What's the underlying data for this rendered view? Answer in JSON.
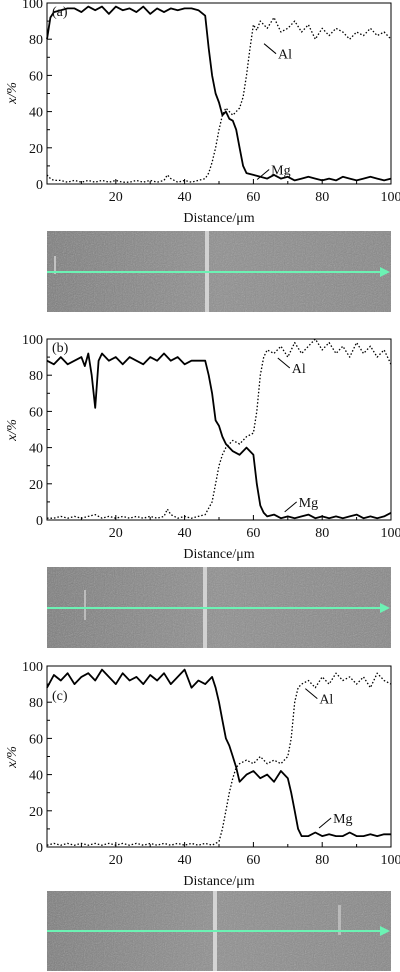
{
  "colors": {
    "mg_line": "#000000",
    "al_line": "#000000",
    "scan_arrow": "#6cf2b4",
    "sem_base": "#8a8a8a"
  },
  "chart_data": [
    {
      "type": "line",
      "panel_label": "(a)",
      "xlabel": "Distance/μm",
      "ylabel": "x/%",
      "xlim": [
        0,
        100
      ],
      "ylim": [
        0,
        100
      ],
      "xticks": [
        "20",
        "40",
        "60",
        "80",
        "100"
      ],
      "yticks": [
        "0",
        "20",
        "40",
        "60",
        "80",
        "100"
      ],
      "series": [
        {
          "name": "Mg",
          "style": "solid",
          "label_at": [
            64,
            8
          ],
          "x": [
            0,
            1,
            2,
            4,
            6,
            8,
            10,
            12,
            14,
            16,
            18,
            20,
            22,
            24,
            26,
            28,
            30,
            32,
            34,
            36,
            38,
            40,
            42,
            44,
            46,
            47,
            48,
            49,
            50,
            51,
            52,
            53,
            54,
            55,
            56,
            57,
            58,
            60,
            62,
            64,
            66,
            68,
            70,
            72,
            74,
            76,
            78,
            80,
            82,
            84,
            86,
            88,
            90,
            92,
            94,
            96,
            98,
            100
          ],
          "y": [
            80,
            92,
            95,
            96,
            97,
            97,
            95,
            98,
            96,
            98,
            94,
            98,
            96,
            97,
            95,
            98,
            94,
            97,
            95,
            97,
            96,
            97,
            97,
            96,
            93,
            75,
            60,
            50,
            45,
            38,
            40,
            36,
            35,
            30,
            20,
            10,
            6,
            5,
            4,
            3,
            5,
            3,
            4,
            2,
            3,
            4,
            3,
            2,
            3,
            2,
            4,
            3,
            2,
            3,
            4,
            3,
            2,
            3
          ]
        },
        {
          "name": "Al",
          "style": "dotted",
          "label_at": [
            66,
            72
          ],
          "x": [
            0,
            1,
            2,
            4,
            6,
            8,
            10,
            12,
            14,
            16,
            18,
            20,
            22,
            24,
            26,
            28,
            30,
            32,
            34,
            35,
            36,
            37,
            38,
            40,
            42,
            44,
            46,
            47,
            48,
            49,
            50,
            51,
            52,
            53,
            54,
            55,
            56,
            57,
            58,
            59,
            60,
            61,
            62,
            64,
            66,
            68,
            70,
            72,
            74,
            76,
            78,
            80,
            82,
            84,
            86,
            88,
            90,
            92,
            94,
            96,
            98,
            100
          ],
          "y": [
            5,
            3,
            2,
            2,
            1,
            2,
            1,
            2,
            1,
            2,
            1,
            2,
            1,
            1,
            2,
            1,
            2,
            1,
            2,
            5,
            3,
            2,
            1,
            2,
            1,
            2,
            3,
            6,
            12,
            20,
            30,
            38,
            42,
            40,
            38,
            40,
            42,
            48,
            60,
            75,
            88,
            85,
            90,
            86,
            92,
            84,
            86,
            90,
            84,
            88,
            80,
            86,
            82,
            86,
            84,
            80,
            84,
            82,
            86,
            82,
            84,
            80
          ]
        }
      ]
    },
    {
      "type": "line",
      "panel_label": "(b)",
      "xlabel": "Distance/μm",
      "ylabel": "x/%",
      "xlim": [
        0,
        100
      ],
      "ylim": [
        0,
        100
      ],
      "xticks": [
        "20",
        "40",
        "60",
        "80",
        "100"
      ],
      "yticks": [
        "0",
        "20",
        "40",
        "60",
        "80",
        "100"
      ],
      "series": [
        {
          "name": "Mg",
          "style": "solid",
          "label_at": [
            72,
            10
          ],
          "x": [
            0,
            2,
            4,
            6,
            8,
            10,
            11,
            12,
            13,
            14,
            15,
            16,
            18,
            20,
            22,
            24,
            26,
            28,
            30,
            32,
            34,
            36,
            38,
            40,
            42,
            44,
            46,
            47,
            48,
            49,
            50,
            51,
            52,
            54,
            56,
            58,
            59,
            60,
            61,
            62,
            63,
            64,
            66,
            68,
            70,
            72,
            74,
            76,
            78,
            80,
            82,
            84,
            86,
            88,
            90,
            92,
            94,
            96,
            98,
            100
          ],
          "y": [
            88,
            86,
            90,
            86,
            88,
            90,
            85,
            92,
            80,
            62,
            88,
            92,
            88,
            90,
            86,
            90,
            88,
            86,
            90,
            88,
            92,
            88,
            90,
            86,
            88,
            88,
            88,
            80,
            70,
            55,
            52,
            46,
            42,
            38,
            36,
            40,
            38,
            36,
            20,
            8,
            4,
            2,
            3,
            1,
            2,
            1,
            2,
            3,
            1,
            2,
            1,
            2,
            1,
            2,
            3,
            1,
            2,
            1,
            2,
            4
          ]
        },
        {
          "name": "Al",
          "style": "dotted",
          "label_at": [
            70,
            84
          ],
          "x": [
            0,
            2,
            4,
            6,
            8,
            10,
            12,
            14,
            16,
            18,
            20,
            22,
            24,
            26,
            28,
            30,
            32,
            34,
            35,
            36,
            37,
            38,
            40,
            42,
            44,
            46,
            48,
            49,
            50,
            51,
            52,
            54,
            56,
            58,
            60,
            61,
            62,
            63,
            64,
            66,
            68,
            70,
            72,
            74,
            76,
            78,
            80,
            82,
            84,
            86,
            88,
            90,
            92,
            94,
            96,
            98,
            100
          ],
          "y": [
            1,
            1,
            2,
            1,
            2,
            1,
            2,
            3,
            1,
            2,
            1,
            2,
            1,
            2,
            1,
            2,
            1,
            2,
            6,
            3,
            2,
            1,
            2,
            1,
            2,
            3,
            10,
            20,
            30,
            36,
            40,
            44,
            42,
            46,
            48,
            60,
            80,
            90,
            94,
            92,
            96,
            90,
            98,
            92,
            96,
            100,
            94,
            98,
            92,
            96,
            90,
            98,
            92,
            96,
            90,
            94,
            86
          ]
        }
      ]
    },
    {
      "type": "line",
      "panel_label": "(c)",
      "xlabel": "Distance/μm",
      "ylabel": "x/%",
      "xlim": [
        0,
        100
      ],
      "ylim": [
        0,
        100
      ],
      "xticks": [
        "20",
        "40",
        "60",
        "80",
        "100"
      ],
      "yticks": [
        "0",
        "20",
        "40",
        "60",
        "80",
        "100"
      ],
      "series": [
        {
          "name": "Mg",
          "style": "solid",
          "label_at": [
            82,
            16
          ],
          "x": [
            0,
            2,
            4,
            6,
            8,
            10,
            12,
            14,
            16,
            18,
            20,
            22,
            24,
            26,
            28,
            30,
            32,
            34,
            36,
            38,
            40,
            42,
            44,
            46,
            48,
            49,
            50,
            51,
            52,
            53,
            54,
            55,
            56,
            58,
            60,
            62,
            64,
            66,
            68,
            70,
            71,
            72,
            73,
            74,
            76,
            78,
            80,
            82,
            84,
            86,
            88,
            90,
            92,
            94,
            96,
            98,
            100
          ],
          "y": [
            88,
            95,
            92,
            96,
            90,
            94,
            96,
            92,
            98,
            94,
            90,
            96,
            92,
            94,
            90,
            95,
            92,
            96,
            90,
            94,
            98,
            88,
            92,
            90,
            94,
            88,
            80,
            70,
            60,
            56,
            50,
            44,
            36,
            40,
            42,
            38,
            40,
            36,
            42,
            38,
            30,
            20,
            10,
            6,
            6,
            8,
            6,
            7,
            6,
            6,
            8,
            6,
            6,
            7,
            6,
            7,
            7
          ]
        },
        {
          "name": "Al",
          "style": "dotted",
          "label_at": [
            78,
            82
          ],
          "x": [
            0,
            2,
            4,
            6,
            8,
            10,
            12,
            14,
            16,
            18,
            20,
            22,
            24,
            26,
            28,
            30,
            32,
            34,
            36,
            38,
            40,
            42,
            44,
            46,
            48,
            49,
            50,
            51,
            52,
            53,
            54,
            55,
            56,
            58,
            60,
            62,
            64,
            66,
            68,
            70,
            71,
            72,
            73,
            74,
            76,
            78,
            80,
            82,
            84,
            86,
            88,
            90,
            92,
            94,
            96,
            98,
            100
          ],
          "y": [
            1,
            2,
            1,
            2,
            1,
            2,
            1,
            2,
            1,
            2,
            1,
            2,
            1,
            2,
            1,
            2,
            1,
            2,
            1,
            2,
            1,
            2,
            1,
            2,
            1,
            2,
            3,
            10,
            20,
            30,
            38,
            44,
            46,
            48,
            46,
            50,
            46,
            48,
            46,
            50,
            60,
            80,
            88,
            90,
            92,
            88,
            94,
            90,
            96,
            92,
            94,
            90,
            94,
            88,
            96,
            92,
            90
          ]
        }
      ]
    }
  ]
}
